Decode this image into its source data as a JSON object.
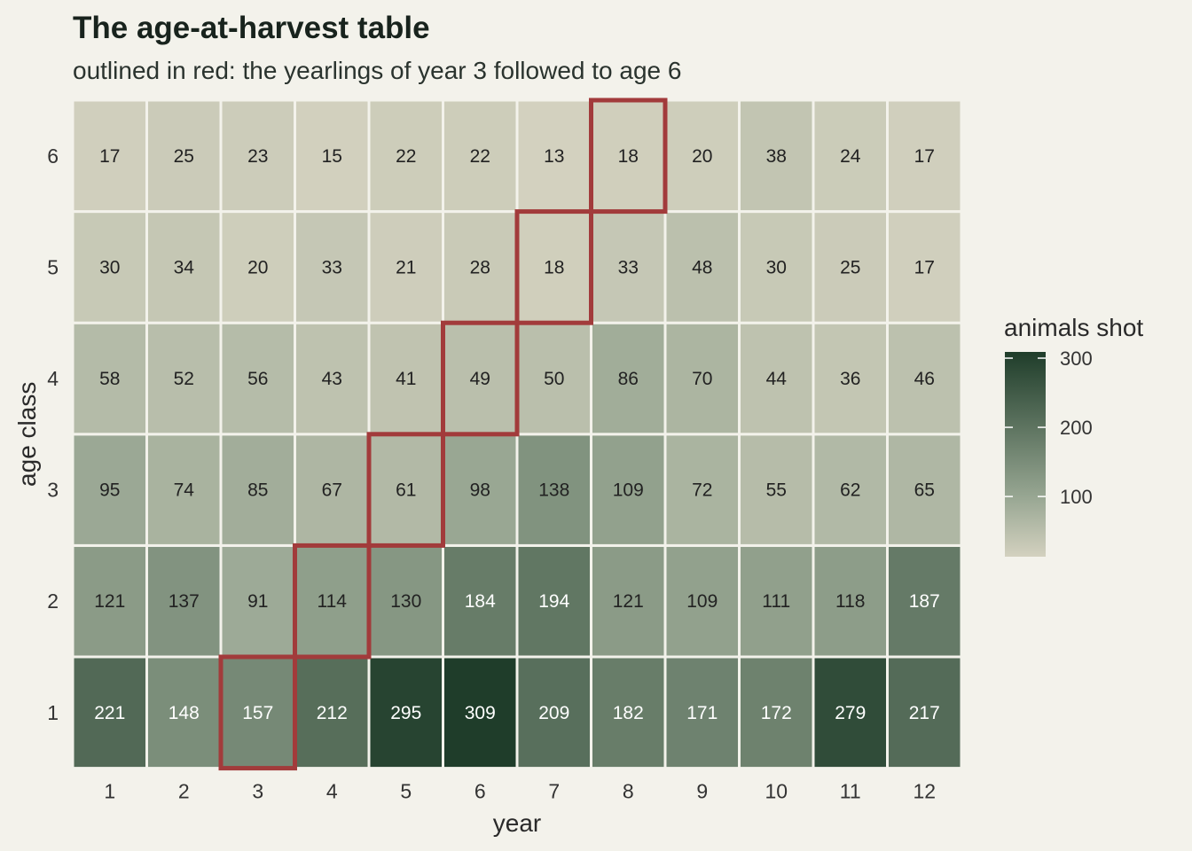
{
  "chart_data": {
    "type": "heatmap",
    "title": "The age-at-harvest table",
    "subtitle": "outlined in red: the yearlings of year 3 followed to age 6",
    "xlabel": "year",
    "ylabel": "age class",
    "x": [
      "1",
      "2",
      "3",
      "4",
      "5",
      "6",
      "7",
      "8",
      "9",
      "10",
      "11",
      "12"
    ],
    "y": [
      "1",
      "2",
      "3",
      "4",
      "5",
      "6"
    ],
    "values": [
      [
        221,
        148,
        157,
        212,
        295,
        309,
        209,
        182,
        171,
        172,
        279,
        217
      ],
      [
        121,
        137,
        91,
        114,
        130,
        184,
        194,
        121,
        109,
        111,
        118,
        187
      ],
      [
        95,
        74,
        85,
        67,
        61,
        98,
        138,
        109,
        72,
        55,
        62,
        65
      ],
      [
        58,
        52,
        56,
        43,
        41,
        49,
        50,
        86,
        70,
        44,
        36,
        46
      ],
      [
        30,
        34,
        20,
        33,
        21,
        28,
        18,
        33,
        48,
        30,
        25,
        17
      ],
      [
        17,
        25,
        23,
        15,
        22,
        22,
        13,
        18,
        20,
        38,
        24,
        17
      ]
    ],
    "highlighted_cells": [
      {
        "year": 3,
        "age": 1
      },
      {
        "year": 4,
        "age": 2
      },
      {
        "year": 5,
        "age": 3
      },
      {
        "year": 6,
        "age": 4
      },
      {
        "year": 7,
        "age": 5
      },
      {
        "year": 8,
        "age": 6
      }
    ],
    "legend": {
      "title": "animals shot",
      "ticks": [
        100,
        200,
        300
      ],
      "range": [
        13,
        309
      ],
      "placement": "right"
    },
    "colors": {
      "low": "#d3d1bf",
      "high": "#1f3d2a",
      "highlight": "#a23b3b",
      "cell_border": "#f3f2eb",
      "text_dark": "#222222",
      "text_light": "#ffffff"
    }
  }
}
